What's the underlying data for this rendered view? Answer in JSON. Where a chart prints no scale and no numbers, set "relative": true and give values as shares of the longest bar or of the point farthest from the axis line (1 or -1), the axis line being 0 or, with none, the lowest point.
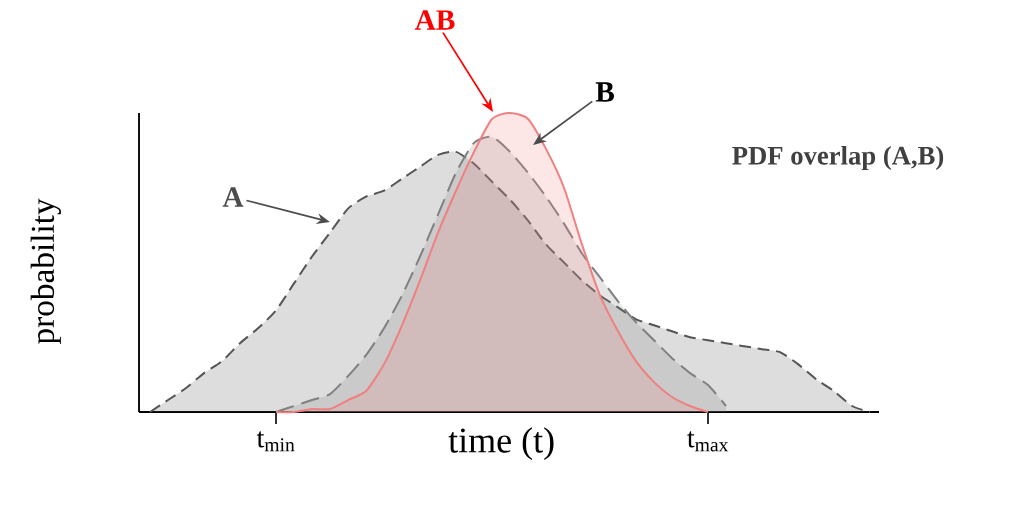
{
  "chart_data": {
    "type": "area",
    "title": "PDF overlap (A,B)",
    "xlabel": "time (t)",
    "ylabel": "probability",
    "relative": true,
    "categories": [
      null,
      null,
      null,
      null,
      null,
      null,
      null,
      "t$_{min}$",
      null,
      null,
      null,
      null,
      null,
      null,
      null,
      null,
      null,
      null,
      null,
      null,
      null,
      null,
      null,
      null,
      null,
      null,
      null,
      null,
      null,
      null,
      null,
      "t$_{max}$",
      null,
      null,
      null,
      null,
      null,
      null,
      null,
      null,
      null
    ],
    "series": [
      {
        "color": "#555555",
        "line_style": "dashed",
        "values": [
          0,
          0.04,
          0.08,
          0.13,
          0.17,
          0.23,
          0.28,
          0.34,
          0.43,
          0.52,
          0.6,
          0.68,
          0.72,
          0.74,
          0.78,
          0.82,
          0.86,
          0.87,
          0.83,
          0.77,
          0.71,
          0.64,
          0.56,
          0.5,
          0.44,
          0.39,
          0.35,
          0.31,
          0.29,
          0.27,
          0.25,
          0.24,
          0.23,
          0.22,
          0.21,
          0.2,
          0.16,
          0.11,
          0.07,
          0.02,
          0
        ]
      },
      {
        "color": "#808080",
        "line_style": "dashed",
        "values": [
          null,
          null,
          null,
          null,
          null,
          null,
          null,
          0,
          0.02,
          0.04,
          0.06,
          0.12,
          0.19,
          0.28,
          0.39,
          0.52,
          0.66,
          0.8,
          0.9,
          0.92,
          0.87,
          0.8,
          0.72,
          0.63,
          0.53,
          0.45,
          0.37,
          0.3,
          0.24,
          0.18,
          0.13,
          0.09,
          0.02,
          null,
          null,
          null,
          null,
          null,
          null,
          null,
          null
        ]
      },
      {
        "color": "#f08080",
        "line_style": "solid",
        "values": [
          null,
          null,
          null,
          null,
          null,
          null,
          null,
          0,
          0,
          0.01,
          0.01,
          0.04,
          0.07,
          0.16,
          0.29,
          0.44,
          0.6,
          0.74,
          0.87,
          0.98,
          1,
          0.98,
          0.88,
          0.75,
          0.56,
          0.39,
          0.27,
          0.17,
          0.1,
          0.05,
          0.02,
          0,
          null,
          null,
          null,
          null,
          null,
          null,
          null,
          null,
          null
        ]
      }
    ],
    "annotations": [
      "A",
      "B",
      "AB"
    ]
  }
}
